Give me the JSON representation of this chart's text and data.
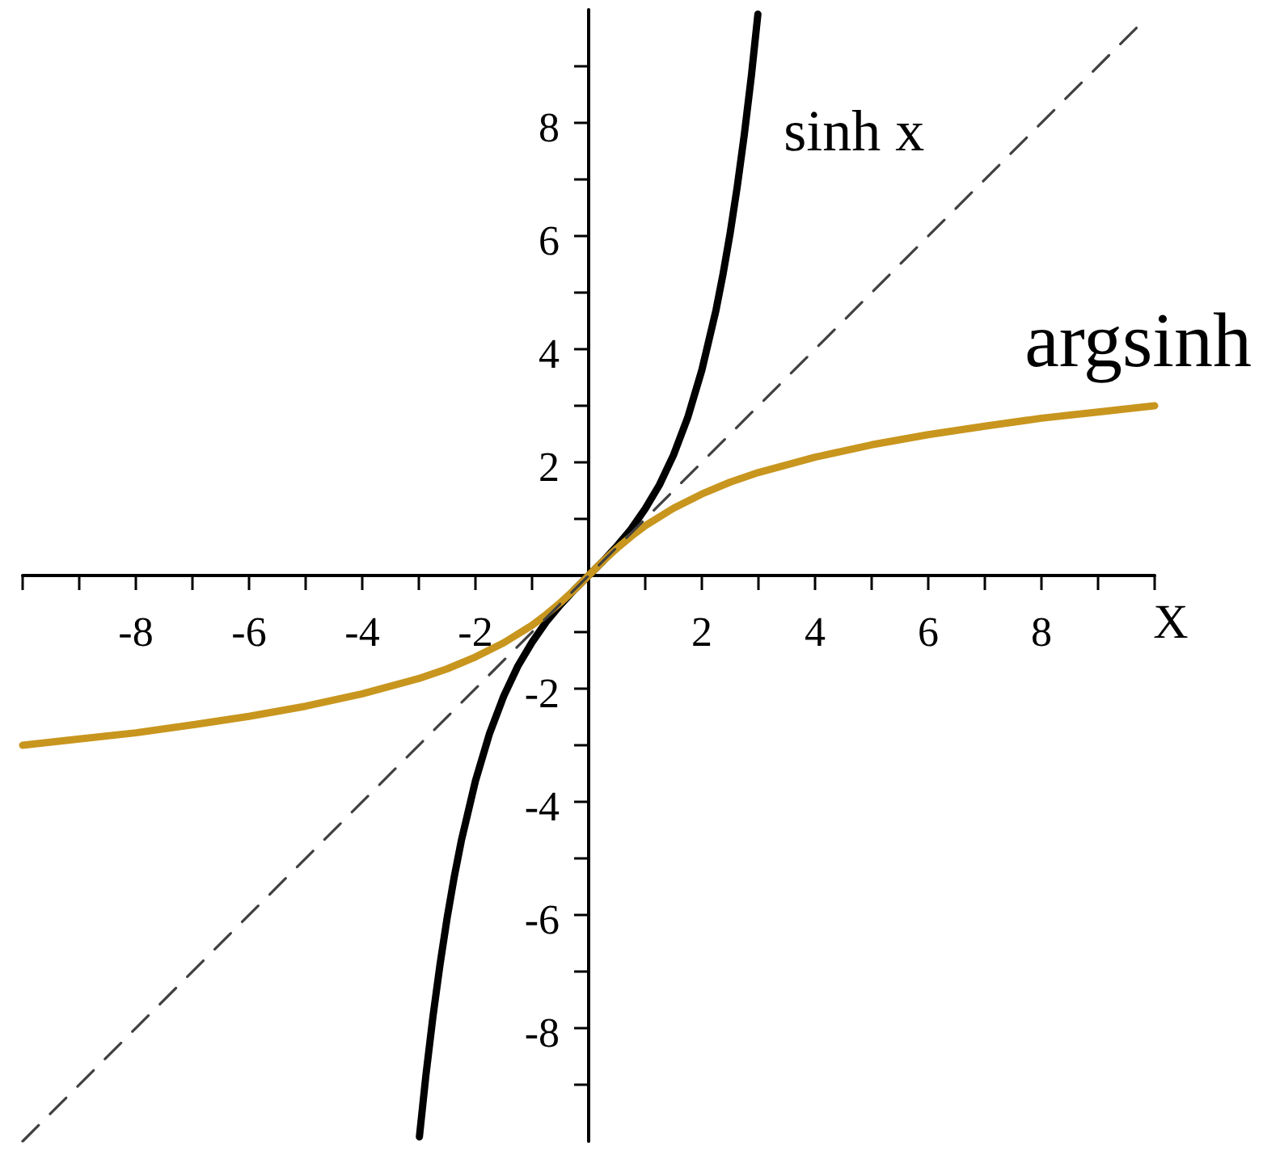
{
  "chart_data": {
    "type": "line",
    "xlabel": "X",
    "xlim": [
      -10,
      10
    ],
    "ylim": [
      -10,
      10
    ],
    "xticks": [
      {
        "value": -10,
        "label": null
      },
      {
        "value": -9,
        "label": null
      },
      -8,
      {
        "value": -7,
        "label": null
      },
      -6,
      {
        "value": -5,
        "label": null
      },
      -4,
      {
        "value": -3,
        "label": null
      },
      -2,
      {
        "value": -1,
        "label": null
      },
      {
        "value": 0,
        "label": null
      },
      {
        "value": 1,
        "label": null
      },
      2,
      {
        "value": 3,
        "label": null
      },
      4,
      {
        "value": 5,
        "label": null
      },
      6,
      {
        "value": 7,
        "label": null
      },
      8,
      {
        "value": 9,
        "label": null
      },
      {
        "value": 10,
        "label": null
      }
    ],
    "yticks": [
      {
        "value": -9,
        "label": null
      },
      -8,
      {
        "value": -7,
        "label": null
      },
      -6,
      {
        "value": -5,
        "label": null
      },
      -4,
      {
        "value": -3,
        "label": null
      },
      -2,
      {
        "value": -1,
        "label": null
      },
      {
        "value": 0,
        "label": null
      },
      {
        "value": 1,
        "label": null
      },
      2,
      {
        "value": 3,
        "label": null
      },
      4,
      {
        "value": 5,
        "label": null
      },
      6,
      {
        "value": 7,
        "label": null
      },
      8,
      {
        "value": 9,
        "label": null
      }
    ],
    "grid": false,
    "legend": false,
    "marker": "none",
    "series": [
      {
        "name": "sinh x",
        "color": "#000000",
        "x": [
          -2.99,
          -2.875,
          -2.75,
          -2.625,
          -2.5,
          -2.375,
          -2.25,
          -2,
          -1.75,
          -1.5,
          -1.25,
          -1,
          -0.75,
          -0.5,
          -0.25,
          0,
          0.25,
          0.5,
          0.75,
          1,
          1.25,
          1.5,
          1.75,
          2,
          2.25,
          2.375,
          2.5,
          2.625,
          2.75,
          2.875,
          2.99
        ],
        "values": [
          -9.92,
          -8.83,
          -7.79,
          -6.87,
          -6.05,
          -5.33,
          -4.69,
          -3.63,
          -2.79,
          -2.13,
          -1.6,
          -1.18,
          -0.82,
          -0.52,
          -0.25,
          0,
          0.25,
          0.52,
          0.82,
          1.18,
          1.6,
          2.13,
          2.79,
          3.63,
          4.69,
          5.33,
          6.05,
          6.87,
          7.79,
          8.83,
          9.92
        ]
      },
      {
        "name": "argsinh",
        "color": "#c8961e",
        "x": [
          -10,
          -9,
          -8,
          -7,
          -6,
          -5,
          -4,
          -3,
          -2.5,
          -2,
          -1.5,
          -1,
          -0.75,
          -0.5,
          -0.25,
          0,
          0.25,
          0.5,
          0.75,
          1,
          1.5,
          2,
          2.5,
          3,
          4,
          5,
          6,
          7,
          8,
          9,
          10
        ],
        "values": [
          -3,
          -2.89,
          -2.78,
          -2.64,
          -2.49,
          -2.31,
          -2.09,
          -1.82,
          -1.65,
          -1.44,
          -1.19,
          -0.88,
          -0.69,
          -0.48,
          -0.25,
          0,
          0.25,
          0.48,
          0.69,
          0.88,
          1.19,
          1.44,
          1.65,
          1.82,
          2.09,
          2.31,
          2.49,
          2.64,
          2.78,
          2.89,
          3
        ]
      },
      {
        "color": "#404040",
        "line_style": "dashed",
        "x": [
          -10,
          9.7
        ],
        "values": [
          -10,
          9.7
        ]
      }
    ]
  }
}
